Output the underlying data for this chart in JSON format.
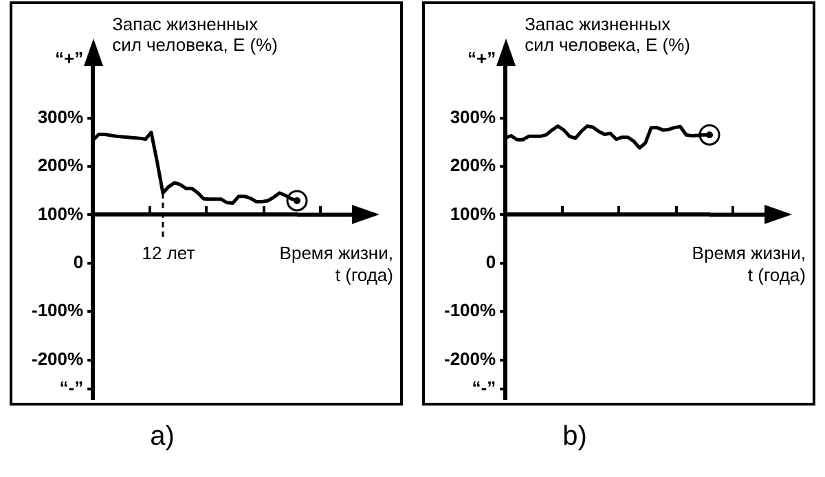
{
  "chart_data": [
    {
      "type": "line",
      "title": "a)",
      "ylabel": "Запас жизненных\nсил человека, E (%)",
      "xlabel": "Время жизни,\nt (года)",
      "categories": [
        null,
        null,
        null,
        null,
        null,
        null,
        null,
        null,
        null,
        null,
        null,
        null,
        null,
        null,
        null,
        null,
        null,
        null,
        null,
        null,
        null,
        null,
        null,
        null,
        null,
        null,
        null,
        null,
        null,
        null,
        null,
        null,
        null,
        null,
        null,
        null
      ],
      "ylim": [
        -280,
        430
      ],
      "yticks": [
        {
          "value": -260,
          "label": "“-”"
        },
        {
          "value": -200,
          "label": "-200%"
        },
        {
          "value": -100,
          "label": "-100%"
        },
        {
          "value": 0,
          "label": "0"
        },
        {
          "value": 100,
          "label": "100%"
        },
        {
          "value": 200,
          "label": "200%"
        },
        {
          "value": 300,
          "label": "300%"
        },
        {
          "value": 420,
          "label": "“+”"
        }
      ],
      "tick_labels": "y",
      "annotations": [
        "12 лет"
      ],
      "series": [
        {
          "color": "#000000",
          "values": [
            254,
            266,
            266,
            264,
            262,
            261,
            260,
            259,
            258,
            256,
            270,
            210,
            145,
            158,
            166,
            162,
            154,
            154,
            145,
            133,
            132,
            132,
            132,
            125,
            124,
            138,
            138,
            134,
            127,
            127,
            129,
            136,
            145,
            140,
            133,
            129
          ]
        }
      ]
    },
    {
      "type": "line",
      "title": "b)",
      "ylabel": "Запас жизненных\nсил человека, E (%)",
      "xlabel": "Время жизни,\nt (года)",
      "categories": [
        null,
        null,
        null,
        null,
        null,
        null,
        null,
        null,
        null,
        null,
        null,
        null,
        null,
        null,
        null,
        null,
        null,
        null,
        null,
        null,
        null,
        null,
        null,
        null,
        null,
        null,
        null,
        null,
        null,
        null,
        null,
        null,
        null,
        null,
        null,
        null
      ],
      "ylim": [
        -280,
        430
      ],
      "yticks": [
        {
          "value": -260,
          "label": "“-”"
        },
        {
          "value": -200,
          "label": "-200%"
        },
        {
          "value": -100,
          "label": "-100%"
        },
        {
          "value": 0,
          "label": "0"
        },
        {
          "value": 100,
          "label": "100%"
        },
        {
          "value": 200,
          "label": "200%"
        },
        {
          "value": 300,
          "label": "300%"
        },
        {
          "value": 420,
          "label": "“+”"
        }
      ],
      "tick_labels": "y",
      "series": [
        {
          "color": "#000000",
          "values": [
            259,
            263,
            255,
            255,
            262,
            262,
            262,
            265,
            275,
            283,
            275,
            262,
            258,
            272,
            283,
            281,
            272,
            266,
            268,
            256,
            260,
            260,
            252,
            238,
            248,
            280,
            280,
            275,
            276,
            280,
            282,
            265,
            263,
            264,
            265,
            265
          ]
        }
      ]
    }
  ]
}
